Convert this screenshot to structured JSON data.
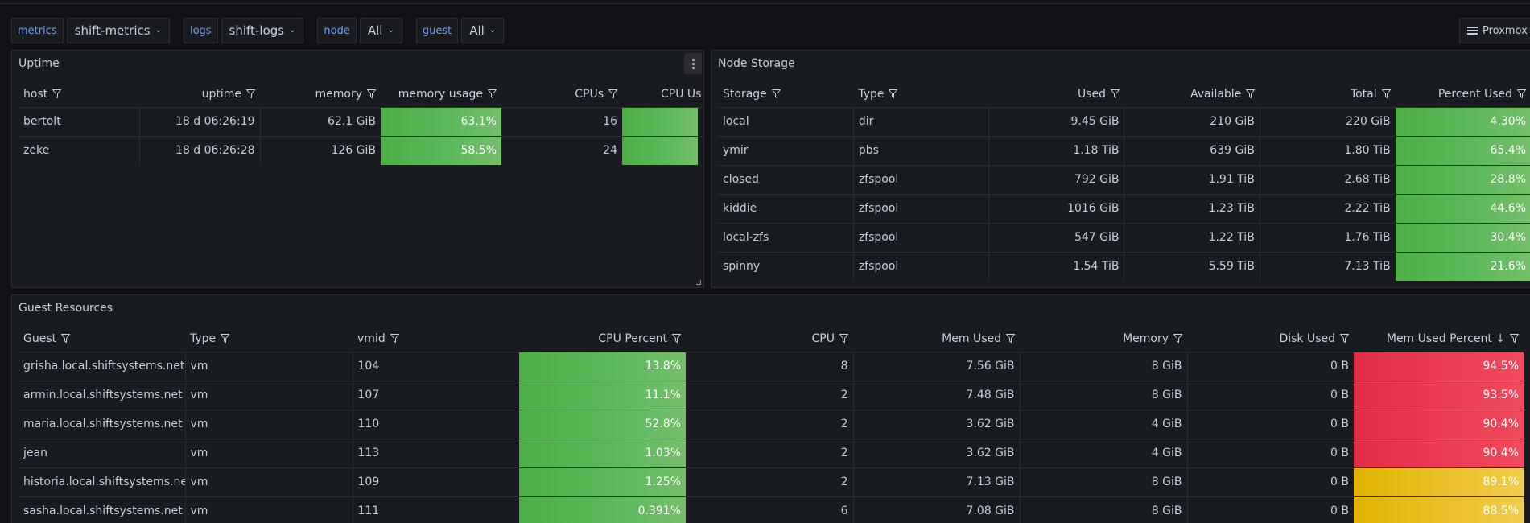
{
  "variables": [
    {
      "label": "metrics",
      "value": "shift-metrics"
    },
    {
      "label": "logs",
      "value": "shift-logs"
    },
    {
      "label": "node",
      "value": "All"
    },
    {
      "label": "guest",
      "value": "All"
    }
  ],
  "header": {
    "proxmox_label": "Proxmox"
  },
  "colors": {
    "green": "#73bf69",
    "red": "#f2495c",
    "yellow": "#f2cc4d",
    "accent": "#6e9fff"
  },
  "uptime": {
    "title": "Uptime",
    "columns": [
      "host",
      "uptime",
      "memory",
      "memory usage",
      "CPUs",
      "CPU Us"
    ],
    "rows": [
      {
        "host": "bertolt",
        "uptime": "18 d 06:26:19",
        "memory": "62.1 GiB",
        "memory_usage": "63.1%",
        "cpus": "16",
        "cpu_usage_percent": 100
      },
      {
        "host": "zeke",
        "uptime": "18 d 06:26:28",
        "memory": "126 GiB",
        "memory_usage": "58.5%",
        "cpus": "24",
        "cpu_usage_percent": 100
      }
    ]
  },
  "storage": {
    "title": "Node Storage",
    "columns": [
      "Storage",
      "Type",
      "Used",
      "Available",
      "Total",
      "Percent Used"
    ],
    "rows": [
      {
        "storage": "local",
        "type": "dir",
        "used": "9.45 GiB",
        "available": "210 GiB",
        "total": "220 GiB",
        "percent": "4.30%"
      },
      {
        "storage": "ymir",
        "type": "pbs",
        "used": "1.18 TiB",
        "available": "639 GiB",
        "total": "1.80 TiB",
        "percent": "65.4%"
      },
      {
        "storage": "closed",
        "type": "zfspool",
        "used": "792 GiB",
        "available": "1.91 TiB",
        "total": "2.68 TiB",
        "percent": "28.8%"
      },
      {
        "storage": "kiddie",
        "type": "zfspool",
        "used": "1016 GiB",
        "available": "1.23 TiB",
        "total": "2.22 TiB",
        "percent": "44.6%"
      },
      {
        "storage": "local-zfs",
        "type": "zfspool",
        "used": "547 GiB",
        "available": "1.22 TiB",
        "total": "1.76 TiB",
        "percent": "30.4%"
      },
      {
        "storage": "spinny",
        "type": "zfspool",
        "used": "1.54 TiB",
        "available": "5.59 TiB",
        "total": "7.13 TiB",
        "percent": "21.6%"
      }
    ]
  },
  "guests": {
    "title": "Guest Resources",
    "columns": [
      "Guest",
      "Type",
      "vmid",
      "CPU Percent",
      "CPU",
      "Mem Used",
      "Memory",
      "Disk Used",
      "Mem Used Percent"
    ],
    "sort_arrow": "↓",
    "rows": [
      {
        "guest": "grisha.local.shiftsystems.net",
        "type": "vm",
        "vmid": "104",
        "cpu_percent": "13.8%",
        "cpu": "8",
        "mem_used": "7.56 GiB",
        "memory": "8 GiB",
        "disk_used": "0 B",
        "mem_pct": "94.5%",
        "level": "red"
      },
      {
        "guest": "armin.local.shiftsystems.net",
        "type": "vm",
        "vmid": "107",
        "cpu_percent": "11.1%",
        "cpu": "2",
        "mem_used": "7.48 GiB",
        "memory": "8 GiB",
        "disk_used": "0 B",
        "mem_pct": "93.5%",
        "level": "red"
      },
      {
        "guest": "maria.local.shiftsystems.net",
        "type": "vm",
        "vmid": "110",
        "cpu_percent": "52.8%",
        "cpu": "2",
        "mem_used": "3.62 GiB",
        "memory": "4 GiB",
        "disk_used": "0 B",
        "mem_pct": "90.4%",
        "level": "red"
      },
      {
        "guest": "jean",
        "type": "vm",
        "vmid": "113",
        "cpu_percent": "1.03%",
        "cpu": "2",
        "mem_used": "3.62 GiB",
        "memory": "4 GiB",
        "disk_used": "0 B",
        "mem_pct": "90.4%",
        "level": "red"
      },
      {
        "guest": "historia.local.shiftsystems.net",
        "type": "vm",
        "vmid": "109",
        "cpu_percent": "1.25%",
        "cpu": "2",
        "mem_used": "7.13 GiB",
        "memory": "8 GiB",
        "disk_used": "0 B",
        "mem_pct": "89.1%",
        "level": "yellow"
      },
      {
        "guest": "sasha.local.shiftsystems.net",
        "type": "vm",
        "vmid": "111",
        "cpu_percent": "0.391%",
        "cpu": "6",
        "mem_used": "7.08 GiB",
        "memory": "8 GiB",
        "disk_used": "0 B",
        "mem_pct": "88.5%",
        "level": "yellow"
      }
    ]
  }
}
